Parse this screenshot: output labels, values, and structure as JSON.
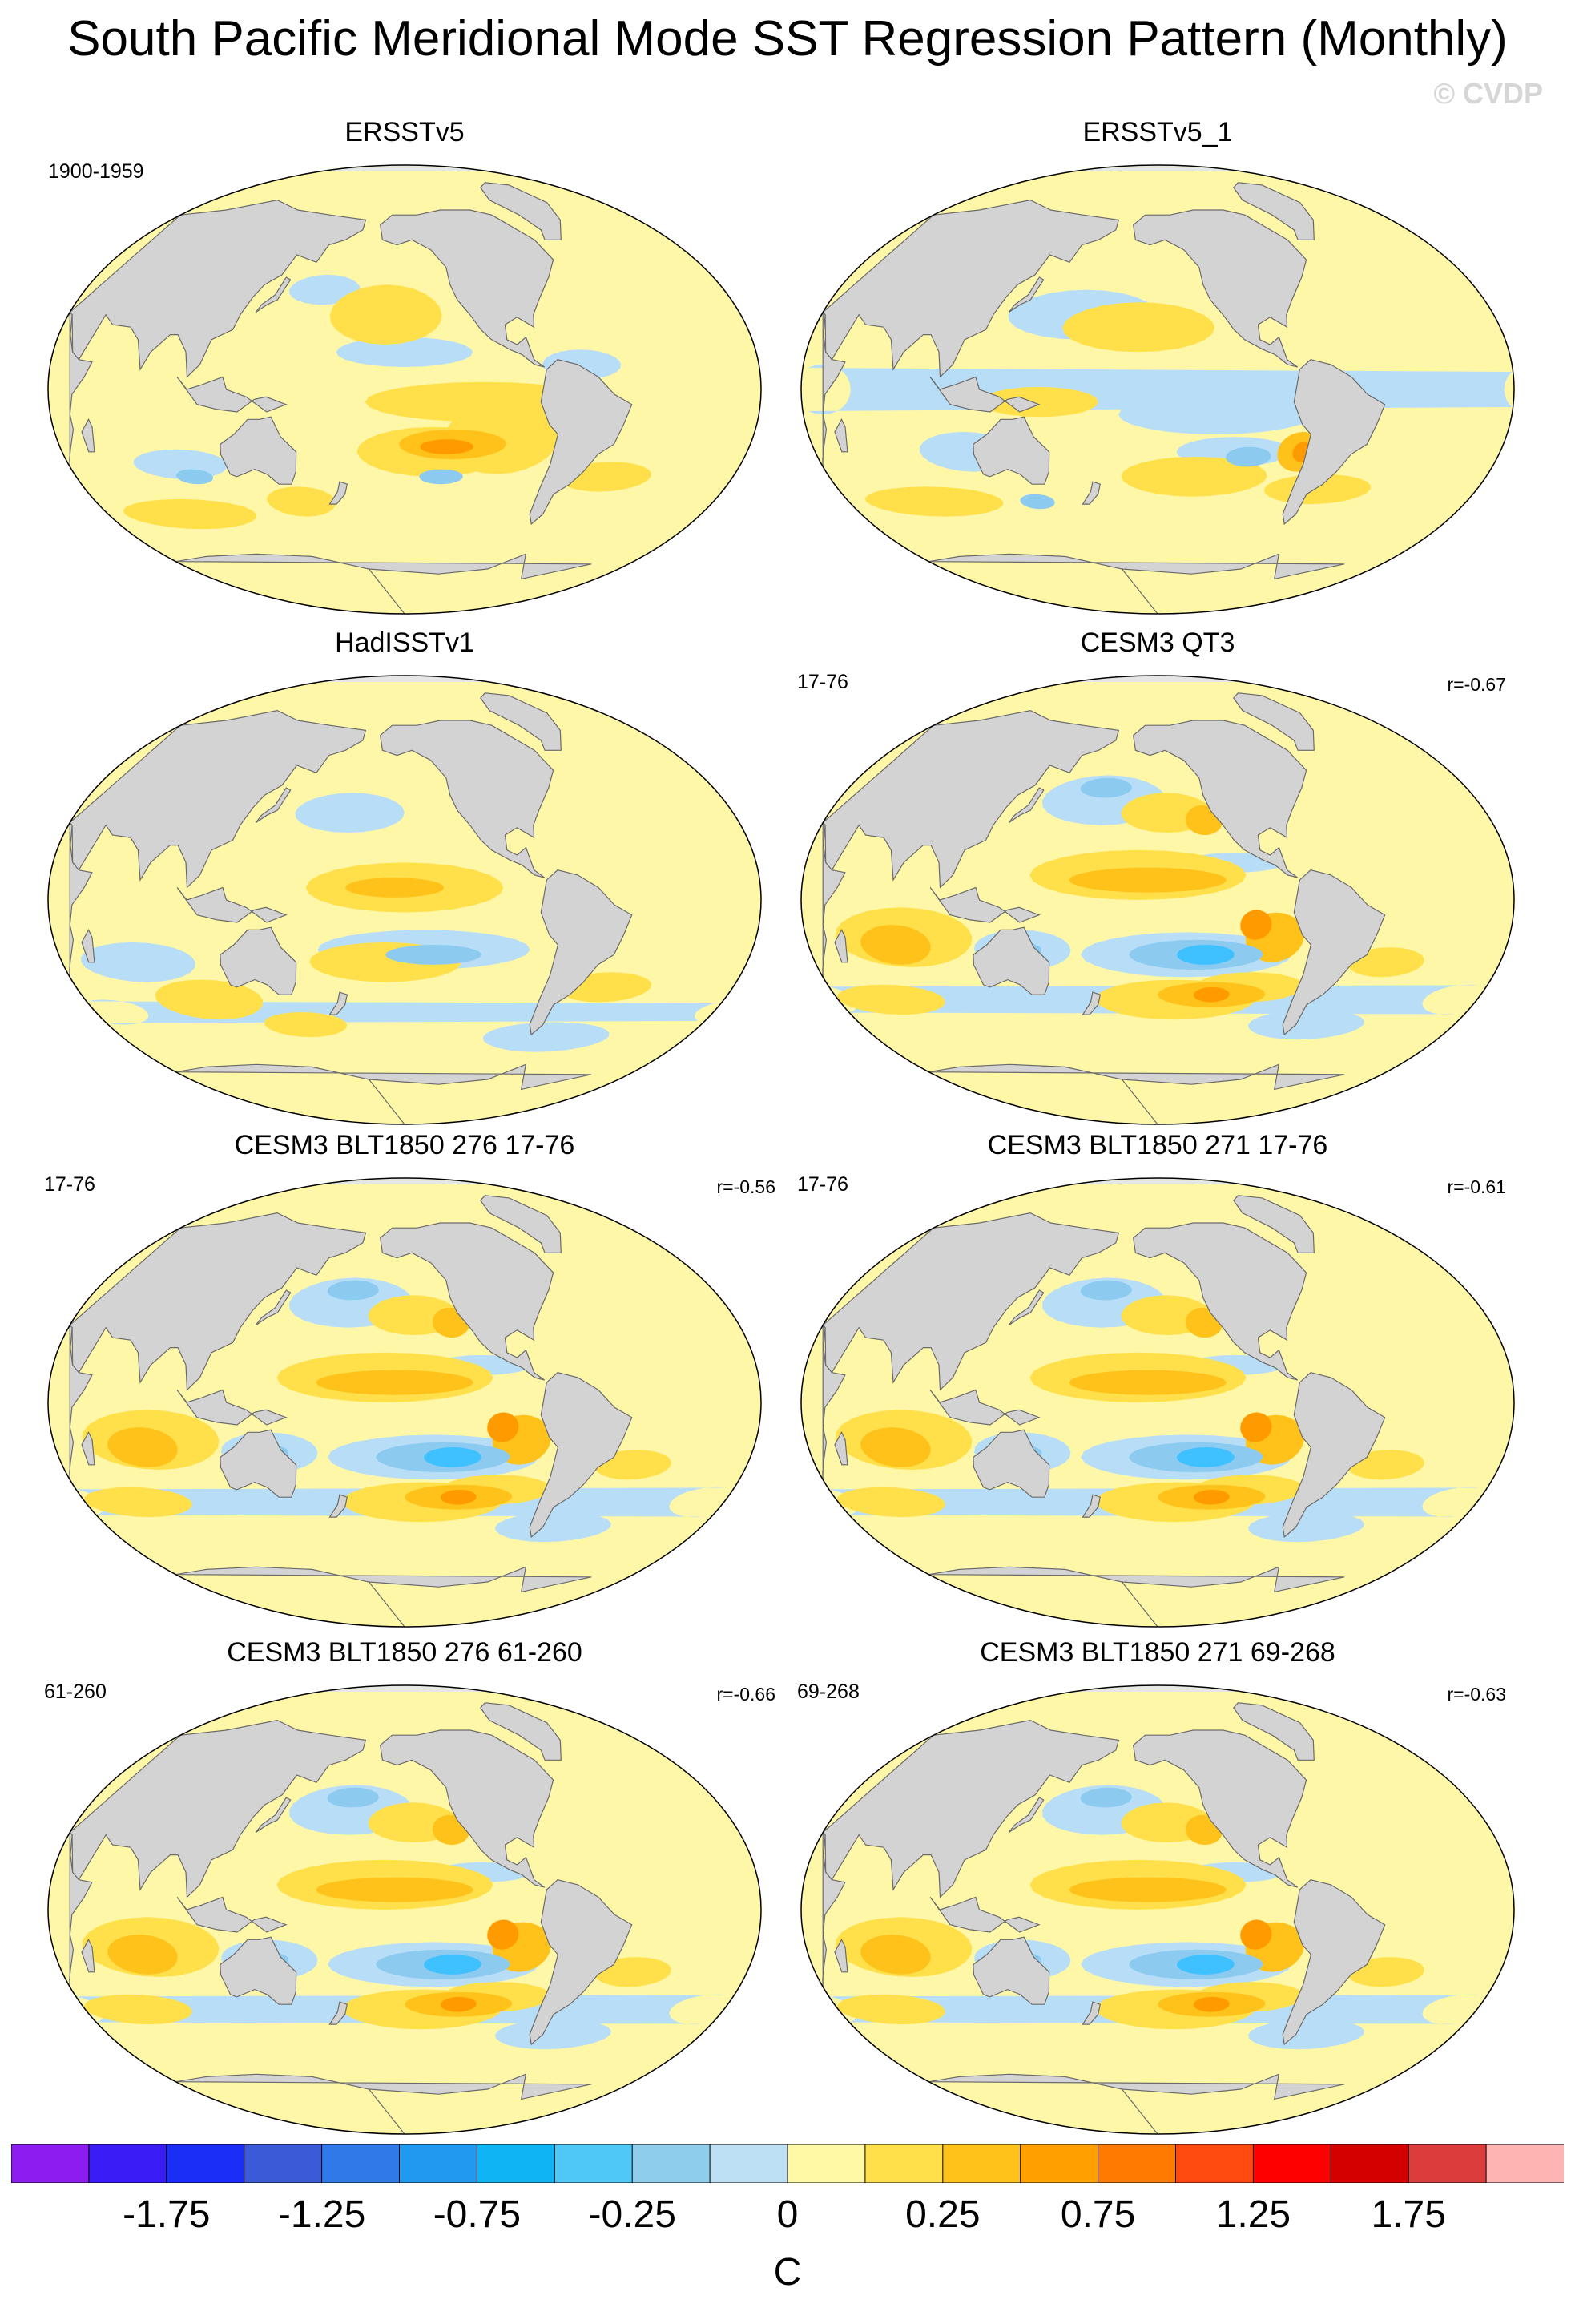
{
  "title": "South Pacific Meridional Mode SST Regression Pattern (Monthly)",
  "watermark": "© CVDP",
  "colors": {
    "land": "#d3d3d3",
    "ocean_background": "#fff7a8",
    "yellow": "#ffe04a",
    "gold": "#ffc21a",
    "orange": "#ff9a00",
    "light_blue": "#b8def7",
    "mid_blue": "#8ccaf0",
    "strong_blue": "#3fc0ff",
    "ice": "#e6e6e6"
  },
  "panels": [
    {
      "title": "ERSSTv5",
      "years": "1900-1959",
      "r": "",
      "pattern": "obs_a"
    },
    {
      "title": "ERSSTv5_1",
      "years": "",
      "r": "",
      "pattern": "obs_b"
    },
    {
      "title": "HadISSTv1",
      "years": "",
      "r": "",
      "pattern": "obs_c"
    },
    {
      "title": "CESM3 QT3",
      "years": "17-76",
      "r": "r=-0.67",
      "pattern": "model"
    },
    {
      "title": "CESM3 BLT1850 276 17-76",
      "years": "17-76",
      "r": "r=-0.56",
      "pattern": "model"
    },
    {
      "title": "CESM3 BLT1850 271 17-76",
      "years": "17-76",
      "r": "r=-0.61",
      "pattern": "model"
    },
    {
      "title": "CESM3 BLT1850 276 61-260",
      "years": "61-260",
      "r": "r=-0.66",
      "pattern": "model"
    },
    {
      "title": "CESM3 BLT1850 271 69-268",
      "years": "69-268",
      "r": "r=-0.63",
      "pattern": "model"
    }
  ],
  "colorbar": {
    "units": "C",
    "colors": [
      "#8c1cf0",
      "#3a1cf5",
      "#1a2ef5",
      "#3a5ad8",
      "#2f7ae8",
      "#1f9af0",
      "#0fb4f5",
      "#4fc8f8",
      "#8ecdeb",
      "#bde0f5",
      "#fff9a6",
      "#ffe04a",
      "#ffc21a",
      "#ffa000",
      "#ff7a00",
      "#ff4a10",
      "#ff0000",
      "#d40000",
      "#dc3c3c",
      "#ffb4b4"
    ],
    "labels": [
      "-1.75",
      "-1.25",
      "-0.75",
      "-0.25",
      "0",
      "0.25",
      "0.75",
      "1.25",
      "1.75"
    ]
  }
}
